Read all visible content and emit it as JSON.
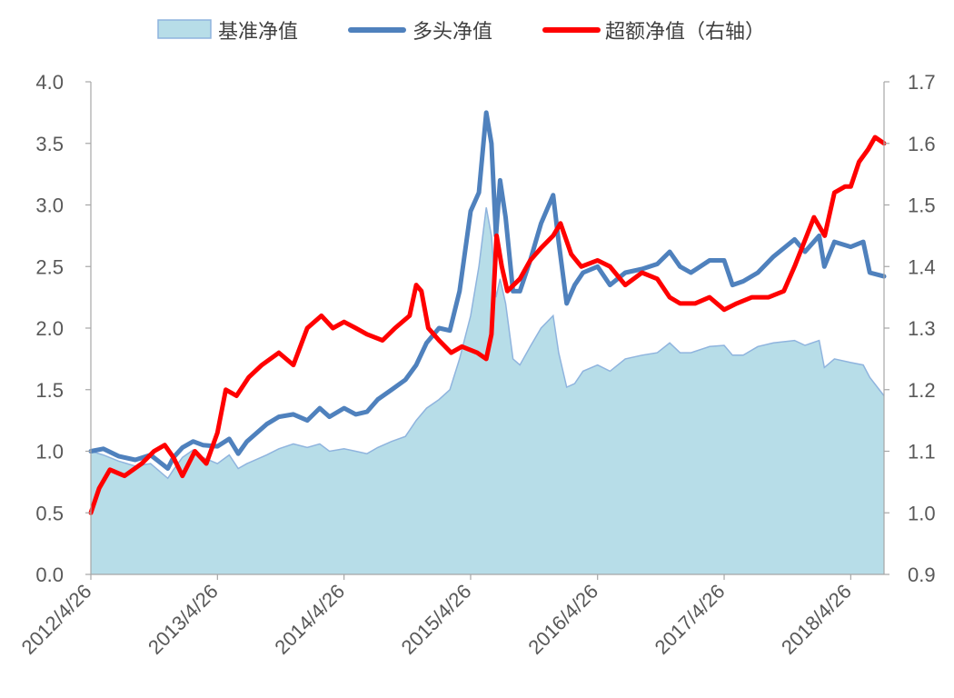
{
  "chart_data": {
    "type": "line",
    "title": "",
    "legend": {
      "position": "top",
      "entries": [
        "基准净值",
        "多头净值",
        "超额净值（右轴）"
      ]
    },
    "x_axis": {
      "type": "date",
      "range": [
        "2012-04-26",
        "2018-07-31"
      ],
      "tick_labels": [
        "2012/4/26",
        "2013/4/26",
        "2014/4/26",
        "2015/4/26",
        "2016/4/26",
        "2017/4/26",
        "2018/4/26"
      ],
      "tick_dates": [
        "2012-04-26",
        "2013-04-26",
        "2014-04-26",
        "2015-04-26",
        "2016-04-26",
        "2017-04-26",
        "2018-04-26"
      ]
    },
    "y_axis_left": {
      "range": [
        0,
        4.0
      ],
      "tick_labels": [
        "0.0",
        "0.5",
        "1.0",
        "1.5",
        "2.0",
        "2.5",
        "3.0",
        "3.5",
        "4.0"
      ]
    },
    "y_axis_right": {
      "range": [
        0.9,
        1.7
      ],
      "tick_labels": [
        "0.9",
        "1.0",
        "1.1",
        "1.2",
        "1.3",
        "1.4",
        "1.5",
        "1.6",
        "1.7"
      ]
    },
    "grid": false,
    "series": [
      {
        "name": "基准净值",
        "type": "area",
        "axis": "left",
        "color": "#b7dde8",
        "edge_color": "#8fb4de",
        "points": [
          [
            "2012-04-26",
            1.0
          ],
          [
            "2012-06-01",
            0.97
          ],
          [
            "2012-07-15",
            0.92
          ],
          [
            "2012-09-01",
            0.88
          ],
          [
            "2012-10-15",
            0.9
          ],
          [
            "2012-12-04",
            0.78
          ],
          [
            "2012-12-20",
            0.85
          ],
          [
            "2013-01-15",
            0.95
          ],
          [
            "2013-02-15",
            1.01
          ],
          [
            "2013-03-15",
            0.95
          ],
          [
            "2013-04-26",
            0.9
          ],
          [
            "2013-05-30",
            0.97
          ],
          [
            "2013-06-25",
            0.86
          ],
          [
            "2013-07-20",
            0.9
          ],
          [
            "2013-09-15",
            0.97
          ],
          [
            "2013-10-20",
            1.02
          ],
          [
            "2013-12-01",
            1.06
          ],
          [
            "2014-01-10",
            1.03
          ],
          [
            "2014-02-15",
            1.06
          ],
          [
            "2014-03-15",
            1.0
          ],
          [
            "2014-04-26",
            1.02
          ],
          [
            "2014-05-30",
            1.0
          ],
          [
            "2014-07-01",
            0.98
          ],
          [
            "2014-08-01",
            1.03
          ],
          [
            "2014-09-10",
            1.08
          ],
          [
            "2014-10-20",
            1.12
          ],
          [
            "2014-11-20",
            1.25
          ],
          [
            "2014-12-20",
            1.35
          ],
          [
            "2015-01-25",
            1.42
          ],
          [
            "2015-02-25",
            1.5
          ],
          [
            "2015-03-25",
            1.75
          ],
          [
            "2015-04-26",
            2.1
          ],
          [
            "2015-05-20",
            2.5
          ],
          [
            "2015-06-10",
            2.98
          ],
          [
            "2015-06-25",
            2.75
          ],
          [
            "2015-07-08",
            2.25
          ],
          [
            "2015-07-20",
            2.4
          ],
          [
            "2015-08-05",
            2.2
          ],
          [
            "2015-08-26",
            1.75
          ],
          [
            "2015-09-15",
            1.7
          ],
          [
            "2015-10-15",
            1.85
          ],
          [
            "2015-11-15",
            2.0
          ],
          [
            "2015-12-20",
            2.1
          ],
          [
            "2016-01-05",
            1.8
          ],
          [
            "2016-01-28",
            1.52
          ],
          [
            "2016-02-20",
            1.55
          ],
          [
            "2016-03-15",
            1.65
          ],
          [
            "2016-04-26",
            1.7
          ],
          [
            "2016-06-01",
            1.65
          ],
          [
            "2016-07-15",
            1.75
          ],
          [
            "2016-09-01",
            1.78
          ],
          [
            "2016-10-15",
            1.8
          ],
          [
            "2016-11-20",
            1.88
          ],
          [
            "2016-12-20",
            1.8
          ],
          [
            "2017-01-20",
            1.8
          ],
          [
            "2017-03-15",
            1.85
          ],
          [
            "2017-04-26",
            1.86
          ],
          [
            "2017-05-20",
            1.78
          ],
          [
            "2017-06-20",
            1.78
          ],
          [
            "2017-08-01",
            1.85
          ],
          [
            "2017-09-15",
            1.88
          ],
          [
            "2017-11-15",
            1.9
          ],
          [
            "2017-12-15",
            1.86
          ],
          [
            "2018-01-25",
            1.9
          ],
          [
            "2018-02-09",
            1.68
          ],
          [
            "2018-03-10",
            1.75
          ],
          [
            "2018-04-26",
            1.72
          ],
          [
            "2018-06-01",
            1.7
          ],
          [
            "2018-06-20",
            1.6
          ],
          [
            "2018-07-31",
            1.45
          ]
        ]
      },
      {
        "name": "多头净值",
        "type": "line",
        "axis": "left",
        "color": "#4f81bd",
        "points": [
          [
            "2012-04-26",
            1.0
          ],
          [
            "2012-06-01",
            1.02
          ],
          [
            "2012-07-15",
            0.96
          ],
          [
            "2012-09-01",
            0.93
          ],
          [
            "2012-10-15",
            0.97
          ],
          [
            "2012-12-04",
            0.86
          ],
          [
            "2012-12-20",
            0.95
          ],
          [
            "2013-01-15",
            1.03
          ],
          [
            "2013-02-15",
            1.08
          ],
          [
            "2013-03-15",
            1.05
          ],
          [
            "2013-04-26",
            1.04
          ],
          [
            "2013-05-30",
            1.1
          ],
          [
            "2013-06-25",
            0.98
          ],
          [
            "2013-07-20",
            1.08
          ],
          [
            "2013-09-15",
            1.22
          ],
          [
            "2013-10-20",
            1.28
          ],
          [
            "2013-12-01",
            1.3
          ],
          [
            "2014-01-10",
            1.25
          ],
          [
            "2014-02-15",
            1.35
          ],
          [
            "2014-03-15",
            1.28
          ],
          [
            "2014-04-26",
            1.35
          ],
          [
            "2014-05-30",
            1.3
          ],
          [
            "2014-07-01",
            1.32
          ],
          [
            "2014-08-01",
            1.42
          ],
          [
            "2014-09-10",
            1.5
          ],
          [
            "2014-10-20",
            1.58
          ],
          [
            "2014-11-20",
            1.7
          ],
          [
            "2014-12-20",
            1.88
          ],
          [
            "2015-01-25",
            2.0
          ],
          [
            "2015-02-25",
            1.98
          ],
          [
            "2015-03-25",
            2.3
          ],
          [
            "2015-04-26",
            2.95
          ],
          [
            "2015-05-20",
            3.1
          ],
          [
            "2015-06-10",
            3.75
          ],
          [
            "2015-06-25",
            3.5
          ],
          [
            "2015-07-08",
            2.75
          ],
          [
            "2015-07-20",
            3.2
          ],
          [
            "2015-08-05",
            2.9
          ],
          [
            "2015-08-26",
            2.3
          ],
          [
            "2015-09-15",
            2.3
          ],
          [
            "2015-10-15",
            2.55
          ],
          [
            "2015-11-15",
            2.85
          ],
          [
            "2015-12-20",
            3.08
          ],
          [
            "2016-01-05",
            2.7
          ],
          [
            "2016-01-28",
            2.2
          ],
          [
            "2016-02-20",
            2.35
          ],
          [
            "2016-03-15",
            2.45
          ],
          [
            "2016-04-26",
            2.5
          ],
          [
            "2016-06-01",
            2.35
          ],
          [
            "2016-07-15",
            2.45
          ],
          [
            "2016-09-01",
            2.48
          ],
          [
            "2016-10-15",
            2.52
          ],
          [
            "2016-11-20",
            2.62
          ],
          [
            "2016-12-20",
            2.5
          ],
          [
            "2017-01-20",
            2.45
          ],
          [
            "2017-03-15",
            2.55
          ],
          [
            "2017-04-26",
            2.55
          ],
          [
            "2017-05-20",
            2.35
          ],
          [
            "2017-06-20",
            2.38
          ],
          [
            "2017-08-01",
            2.45
          ],
          [
            "2017-09-15",
            2.58
          ],
          [
            "2017-11-15",
            2.72
          ],
          [
            "2017-12-15",
            2.62
          ],
          [
            "2018-01-25",
            2.75
          ],
          [
            "2018-02-09",
            2.5
          ],
          [
            "2018-03-10",
            2.7
          ],
          [
            "2018-04-26",
            2.66
          ],
          [
            "2018-06-01",
            2.7
          ],
          [
            "2018-06-20",
            2.45
          ],
          [
            "2018-07-31",
            2.42
          ]
        ]
      },
      {
        "name": "超额净值（右轴）",
        "type": "line",
        "axis": "right",
        "color": "#ff0000",
        "points": [
          [
            "2012-04-26",
            1.0
          ],
          [
            "2012-05-20",
            1.04
          ],
          [
            "2012-06-20",
            1.07
          ],
          [
            "2012-08-01",
            1.06
          ],
          [
            "2012-09-20",
            1.08
          ],
          [
            "2012-10-25",
            1.1
          ],
          [
            "2012-11-25",
            1.11
          ],
          [
            "2012-12-20",
            1.09
          ],
          [
            "2013-01-15",
            1.06
          ],
          [
            "2013-02-20",
            1.1
          ],
          [
            "2013-03-25",
            1.08
          ],
          [
            "2013-04-26",
            1.13
          ],
          [
            "2013-05-20",
            1.2
          ],
          [
            "2013-06-20",
            1.19
          ],
          [
            "2013-07-25",
            1.22
          ],
          [
            "2013-09-01",
            1.24
          ],
          [
            "2013-10-20",
            1.26
          ],
          [
            "2013-12-01",
            1.24
          ],
          [
            "2014-01-10",
            1.3
          ],
          [
            "2014-02-20",
            1.32
          ],
          [
            "2014-03-25",
            1.3
          ],
          [
            "2014-04-26",
            1.31
          ],
          [
            "2014-05-30",
            1.3
          ],
          [
            "2014-07-01",
            1.29
          ],
          [
            "2014-08-15",
            1.28
          ],
          [
            "2014-09-20",
            1.3
          ],
          [
            "2014-11-01",
            1.32
          ],
          [
            "2014-11-20",
            1.37
          ],
          [
            "2014-12-05",
            1.36
          ],
          [
            "2014-12-25",
            1.3
          ],
          [
            "2015-01-25",
            1.28
          ],
          [
            "2015-03-01",
            1.26
          ],
          [
            "2015-04-01",
            1.27
          ],
          [
            "2015-05-15",
            1.26
          ],
          [
            "2015-06-10",
            1.25
          ],
          [
            "2015-06-25",
            1.29
          ],
          [
            "2015-07-10",
            1.45
          ],
          [
            "2015-07-25",
            1.4
          ],
          [
            "2015-08-10",
            1.36
          ],
          [
            "2015-09-15",
            1.38
          ],
          [
            "2015-10-15",
            1.41
          ],
          [
            "2015-11-15",
            1.43
          ],
          [
            "2015-12-20",
            1.45
          ],
          [
            "2016-01-10",
            1.47
          ],
          [
            "2016-02-10",
            1.42
          ],
          [
            "2016-03-10",
            1.4
          ],
          [
            "2016-04-26",
            1.41
          ],
          [
            "2016-06-01",
            1.4
          ],
          [
            "2016-07-15",
            1.37
          ],
          [
            "2016-09-01",
            1.39
          ],
          [
            "2016-10-15",
            1.38
          ],
          [
            "2016-11-20",
            1.35
          ],
          [
            "2016-12-20",
            1.34
          ],
          [
            "2017-02-01",
            1.34
          ],
          [
            "2017-03-15",
            1.35
          ],
          [
            "2017-04-26",
            1.33
          ],
          [
            "2017-06-01",
            1.34
          ],
          [
            "2017-07-15",
            1.35
          ],
          [
            "2017-09-01",
            1.35
          ],
          [
            "2017-10-15",
            1.36
          ],
          [
            "2017-11-15",
            1.4
          ],
          [
            "2017-12-20",
            1.45
          ],
          [
            "2018-01-10",
            1.48
          ],
          [
            "2018-02-10",
            1.45
          ],
          [
            "2018-03-10",
            1.52
          ],
          [
            "2018-04-10",
            1.53
          ],
          [
            "2018-04-26",
            1.53
          ],
          [
            "2018-05-20",
            1.57
          ],
          [
            "2018-06-15",
            1.59
          ],
          [
            "2018-07-05",
            1.61
          ],
          [
            "2018-07-31",
            1.6
          ]
        ]
      }
    ]
  }
}
